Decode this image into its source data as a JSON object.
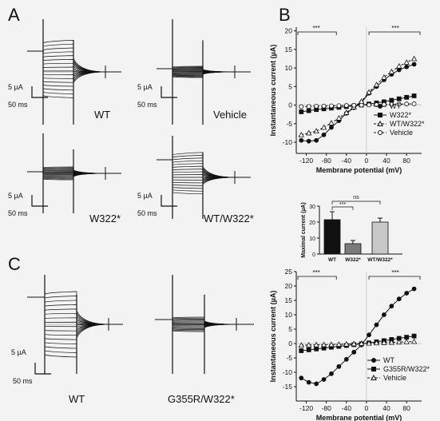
{
  "panels": {
    "A": {
      "letter": "A",
      "traces": [
        {
          "label": "WT",
          "scale_current": "5 µA",
          "scale_time": "50 ms"
        },
        {
          "label": "Vehicle",
          "scale_current": "5 µA",
          "scale_time": "50 ms"
        },
        {
          "label": "W322*",
          "scale_current": "5 µA",
          "scale_time": "50 ms"
        },
        {
          "label": "WT/W322*",
          "scale_current": "5 µA",
          "scale_time": "50 ms"
        }
      ]
    },
    "B": {
      "letter": "B",
      "sig_left": "***",
      "sig_right": "***",
      "legend": [
        "WT",
        "W322*",
        "WT/W322*",
        "Vehicle"
      ],
      "bar_sig_top": "ns",
      "bar_sig_inner": "***"
    },
    "C": {
      "letter": "C",
      "traces": [
        {
          "label": "WT",
          "scale_current": "5 µA",
          "scale_time": "50 ms"
        },
        {
          "label": "G355R/W322*"
        }
      ],
      "sig_left": "***",
      "sig_right": "***",
      "legend": [
        "WT",
        "G355R/W322*",
        "Vehicle"
      ]
    }
  },
  "chart_data": [
    {
      "type": "line",
      "panel": "B",
      "xlabel": "Membrane potential (mV)",
      "ylabel": "Instantaneous current (µA)",
      "xticks": [
        -120,
        -80,
        -40,
        0,
        40,
        80
      ],
      "yticks": [
        -10,
        -5,
        0,
        5,
        10,
        15,
        20
      ],
      "xlim": [
        -140,
        110
      ],
      "ylim": [
        -13,
        21
      ],
      "x": [
        -130,
        -115,
        -100,
        -85,
        -70,
        -55,
        -40,
        -25,
        -10,
        5,
        20,
        35,
        50,
        65,
        80,
        95
      ],
      "series": [
        {
          "name": "WT",
          "marker": "filled-circle",
          "values": [
            -9.5,
            -9.7,
            -9.5,
            -8,
            -6,
            -4.2,
            -2.2,
            -0.7,
            0.7,
            3.2,
            5,
            6.8,
            8.3,
            9.5,
            10.3,
            11
          ]
        },
        {
          "name": "W322*",
          "marker": "filled-square",
          "values": [
            -1.8,
            -1.5,
            -1.2,
            -1.0,
            -0.8,
            -0.6,
            -0.4,
            -0.2,
            0.0,
            0.3,
            0.6,
            0.9,
            1.3,
            1.7,
            2.1,
            2.5
          ]
        },
        {
          "name": "WT/W322*",
          "marker": "open-triangle",
          "values": [
            -8,
            -7.5,
            -7,
            -6,
            -4.8,
            -3.5,
            -2,
            -0.5,
            1,
            3.5,
            5.5,
            7.5,
            9,
            10.5,
            11.5,
            12.5
          ]
        },
        {
          "name": "Vehicle",
          "marker": "open-circle",
          "values": [
            -0.4,
            -0.35,
            -0.3,
            -0.25,
            -0.2,
            -0.15,
            -0.1,
            -0.05,
            0,
            0.05,
            0.1,
            0.15,
            0.2,
            0.25,
            0.3,
            0.35
          ]
        }
      ]
    },
    {
      "type": "bar",
      "panel": "B-inset",
      "ylabel": "Maximal current (µA)",
      "categories": [
        "WT",
        "W322*",
        "WT/W322*"
      ],
      "values": [
        21.5,
        6.5,
        20
      ],
      "errors": [
        5,
        2,
        2.5
      ],
      "yticks": [
        0,
        10,
        20,
        30
      ],
      "ylim": [
        0,
        30
      ],
      "colors": [
        "#111111",
        "#7a7a7a",
        "#c8c8c8"
      ]
    },
    {
      "type": "line",
      "panel": "C",
      "xlabel": "Membrane potential (mV)",
      "ylabel": "Instantaneous current (µA)",
      "xticks": [
        -120,
        -80,
        -40,
        0,
        40,
        80
      ],
      "yticks": [
        -15,
        -10,
        -5,
        0,
        5,
        10,
        15,
        20,
        25
      ],
      "xlim": [
        -140,
        110
      ],
      "ylim": [
        -20,
        25
      ],
      "x": [
        -130,
        -115,
        -100,
        -85,
        -70,
        -55,
        -40,
        -25,
        -10,
        5,
        20,
        35,
        50,
        65,
        80,
        95
      ],
      "series": [
        {
          "name": "WT",
          "marker": "filled-circle",
          "values": [
            -12,
            -13.5,
            -14,
            -12.5,
            -10.5,
            -8,
            -5.5,
            -3,
            -0.5,
            3,
            6.5,
            10,
            13,
            15.5,
            17.5,
            19
          ]
        },
        {
          "name": "G355R/W322*",
          "marker": "filled-square",
          "values": [
            -2.5,
            -2.2,
            -1.9,
            -1.6,
            -1.3,
            -1.0,
            -0.7,
            -0.4,
            -0.1,
            0.2,
            0.6,
            1.0,
            1.4,
            1.8,
            2.2,
            2.6
          ]
        },
        {
          "name": "Vehicle",
          "marker": "open-triangle",
          "values": [
            -0.6,
            -0.5,
            -0.45,
            -0.4,
            -0.35,
            -0.3,
            -0.2,
            -0.1,
            0,
            0.1,
            0.2,
            0.3,
            0.4,
            0.5,
            0.6,
            0.7
          ]
        }
      ]
    }
  ]
}
